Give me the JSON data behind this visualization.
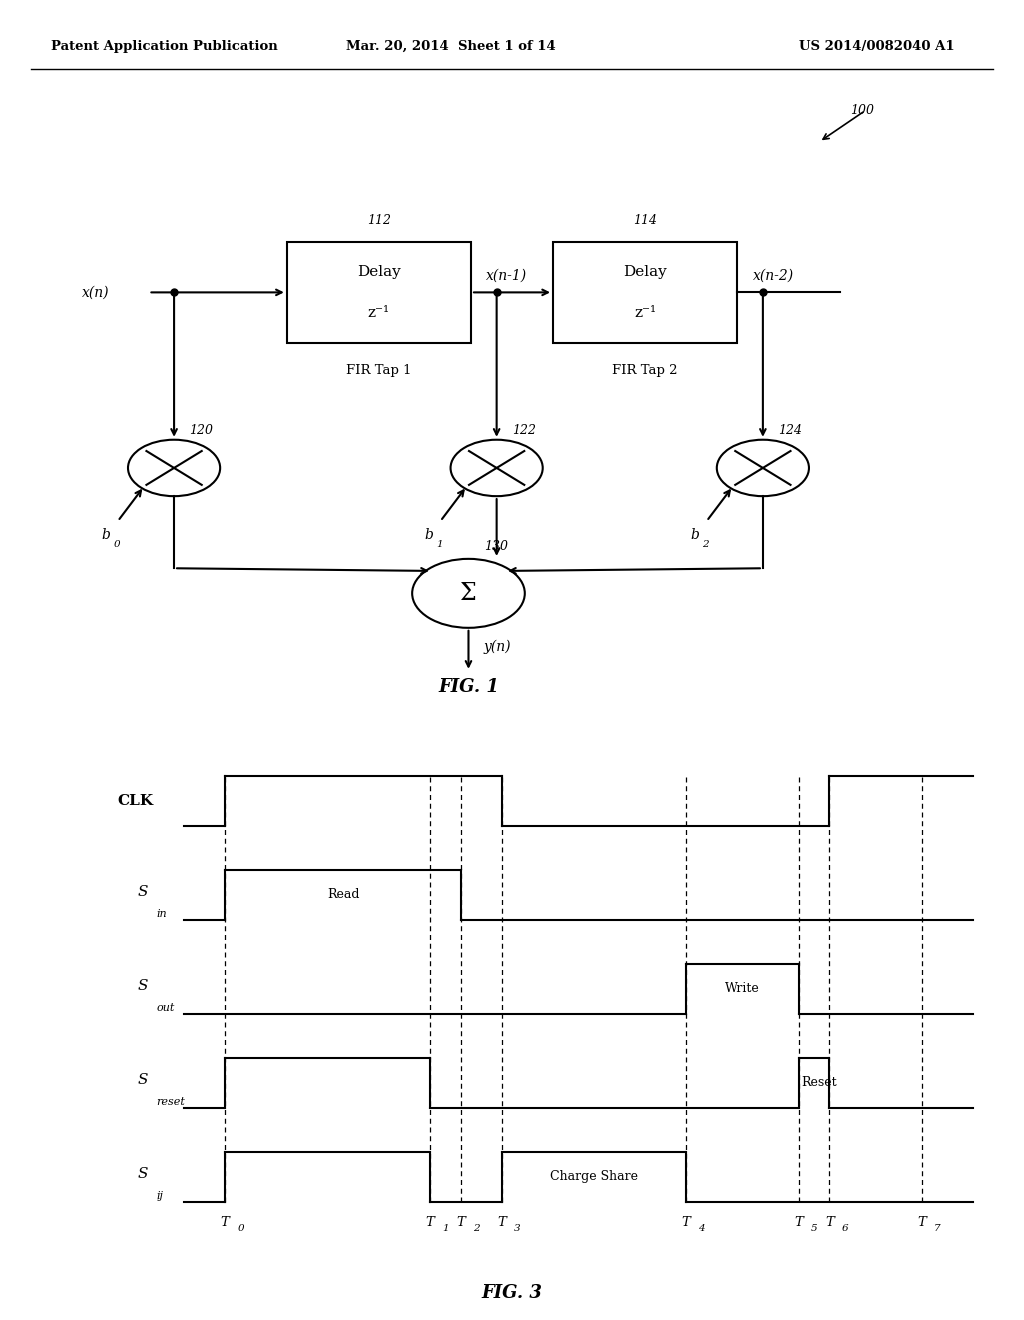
{
  "bg_color": "#ffffff",
  "header_left": "Patent Application Publication",
  "header_mid": "Mar. 20, 2014  Sheet 1 of 14",
  "header_right": "US 2014/0082040 A1",
  "fig1_label": "FIG. 1",
  "fig3_label": "FIG. 3",
  "ref_100": "100",
  "ref_112": "112",
  "ref_114": "114",
  "ref_120": "120",
  "ref_122": "122",
  "ref_124": "124",
  "ref_130": "130",
  "fir_tap1": "FIR Tap 1",
  "fir_tap2": "FIR Tap 2",
  "xn_label": "x(n)",
  "xn1_label": "x(n-1)",
  "xn2_label": "x(n-2)",
  "b0_label": "b",
  "b0_sub": "0",
  "b1_label": "b",
  "b1_sub": "1",
  "b2_label": "b",
  "b2_sub": "2",
  "yn_label": "y(n)",
  "sigma_label": "Σ",
  "clk_label": "CLK",
  "sin_label": "S",
  "sin_sub": "in",
  "sout_label": "S",
  "sout_sub": "out",
  "sreset_label": "S",
  "sreset_sub": "reset",
  "sij_label": "S",
  "sij_sub": "ij",
  "read_label": "Read",
  "write_label": "Write",
  "reset_label": "Reset",
  "charge_share_label": "Charge Share",
  "t_labels": [
    "T",
    "T",
    "T",
    "T",
    "T",
    "T",
    "T",
    "T"
  ],
  "t_subs": [
    "0",
    "1",
    "2",
    "3",
    "4",
    "5",
    "6",
    "7"
  ]
}
